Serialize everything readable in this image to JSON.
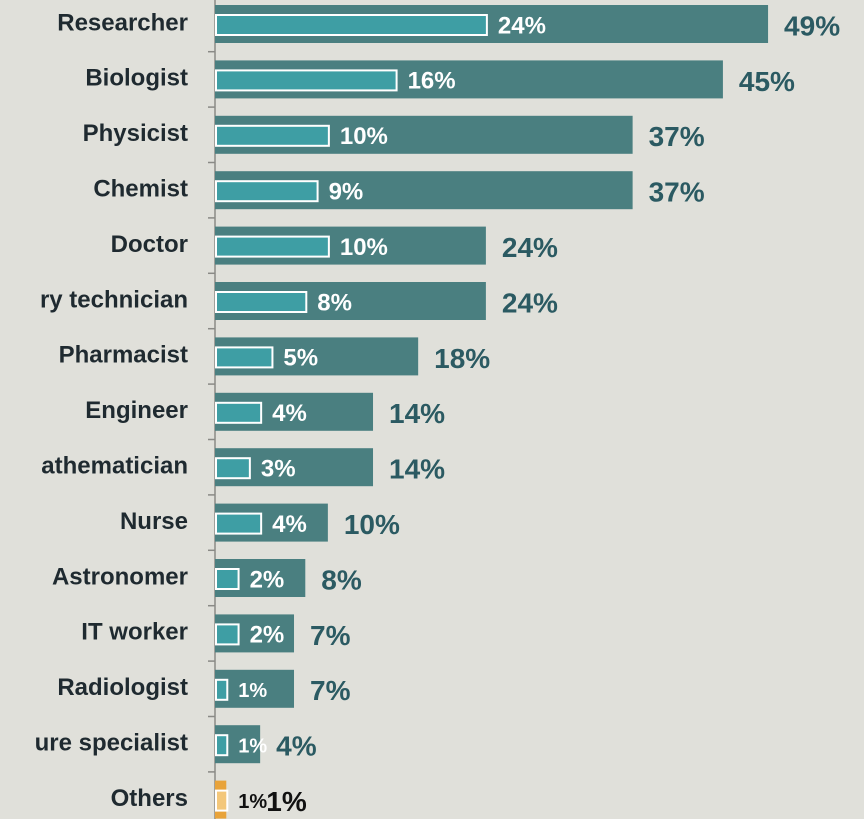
{
  "chart_data": {
    "type": "bar",
    "orientation": "horizontal",
    "categories": [
      "Researcher",
      "Biologist",
      "Physicist",
      "Chemist",
      "Doctor",
      "ry technician",
      "Pharmacist",
      "Engineer",
      "athematician",
      "Nurse",
      "Astronomer",
      "IT worker",
      "Radiologist",
      "ure specialist",
      "Others"
    ],
    "xlim": [
      0,
      57.5
    ],
    "series": [
      {
        "name": "outer",
        "color": "#4a7f80",
        "label_color": "#2b5a62",
        "colors": [
          "#4a7f80",
          "#4a7f80",
          "#4a7f80",
          "#4a7f80",
          "#4a7f80",
          "#4a7f80",
          "#4a7f80",
          "#4a7f80",
          "#4a7f80",
          "#4a7f80",
          "#4a7f80",
          "#4a7f80",
          "#4a7f80",
          "#4a7f80",
          "#e8a33a"
        ],
        "label_colors": [
          "#2b5a62",
          "#2b5a62",
          "#2b5a62",
          "#2b5a62",
          "#2b5a62",
          "#2b5a62",
          "#2b5a62",
          "#2b5a62",
          "#2b5a62",
          "#2b5a62",
          "#2b5a62",
          "#2b5a62",
          "#2b5a62",
          "#2b5a62",
          "#111111"
        ],
        "values": [
          49,
          45,
          37,
          37,
          24,
          24,
          18,
          14,
          14,
          10,
          8,
          7,
          7,
          4,
          1
        ],
        "value_labels": [
          "49%",
          "45%",
          "37%",
          "37%",
          "24%",
          "24%",
          "18%",
          "14%",
          "14%",
          "10%",
          "8%",
          "7%",
          "7%",
          "4%",
          "1%"
        ]
      },
      {
        "name": "inner",
        "color": "#3e9ea4",
        "colors": [
          "#3e9ea4",
          "#3e9ea4",
          "#3e9ea4",
          "#3e9ea4",
          "#3e9ea4",
          "#3e9ea4",
          "#3e9ea4",
          "#3e9ea4",
          "#3e9ea4",
          "#3e9ea4",
          "#3e9ea4",
          "#3e9ea4",
          "#3e9ea4",
          "#3e9ea4",
          "#f3c77a"
        ],
        "label_colors": [
          "#ffffff",
          "#ffffff",
          "#ffffff",
          "#ffffff",
          "#ffffff",
          "#ffffff",
          "#ffffff",
          "#ffffff",
          "#ffffff",
          "#ffffff",
          "#ffffff",
          "#ffffff",
          "#ffffff",
          "#ffffff",
          "#111111"
        ],
        "values": [
          24,
          16,
          10,
          9,
          10,
          8,
          5,
          4,
          3,
          4,
          2,
          2,
          1,
          1,
          1
        ],
        "value_labels": [
          "24%",
          "16%",
          "10%",
          "9%",
          "10%",
          "8%",
          "5%",
          "4%",
          "3%",
          "4%",
          "2%",
          "2%",
          "1%",
          "1%",
          "1%"
        ]
      }
    ]
  }
}
